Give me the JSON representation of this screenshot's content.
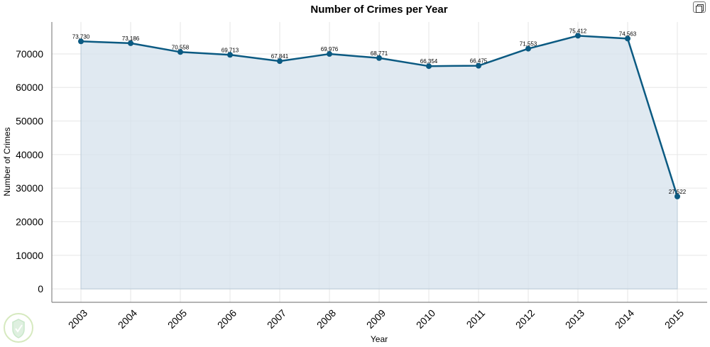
{
  "chart_data": {
    "type": "area",
    "title": "Number of Crimes per Year",
    "xlabel": "Year",
    "ylabel": "Number of Crimes",
    "x": [
      "2003",
      "2004",
      "2005",
      "2006",
      "2007",
      "2008",
      "2009",
      "2010",
      "2011",
      "2012",
      "2013",
      "2014",
      "2015"
    ],
    "series": [
      {
        "values": [
          73730,
          73186,
          70558,
          69713,
          67841,
          69976,
          68771,
          66354,
          66475,
          71553,
          75412,
          74563,
          27522
        ],
        "data_labels": [
          "73,730",
          "73,186",
          "70,558",
          "69,713",
          "67,841",
          "69,976",
          "68,771",
          "66,354",
          "66,475",
          "71,553",
          "75,412",
          "74,563",
          "27,522"
        ]
      }
    ],
    "yticks": [
      0,
      10000,
      20000,
      30000,
      40000,
      50000,
      60000,
      70000
    ],
    "ylim": [
      -4000,
      79500
    ],
    "grid": true,
    "legend": "none",
    "colors": {
      "line": "#0b5a82",
      "fill": "#d6e2ec",
      "grid": "#e6e6e6"
    }
  },
  "toolbar": {
    "copy_icon": "copy-icon"
  }
}
